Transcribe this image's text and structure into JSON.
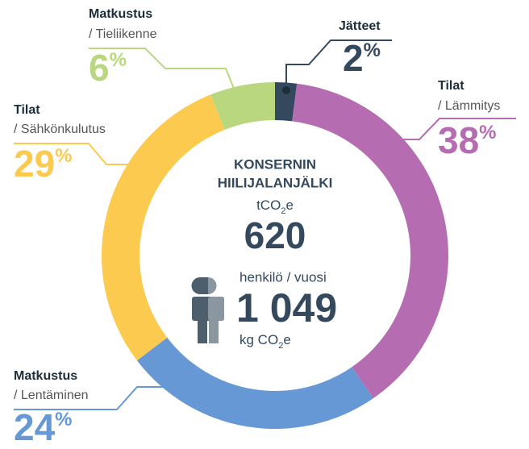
{
  "chart_data": {
    "type": "donut",
    "unit": "%",
    "segments": [
      {
        "title": "Jätteet",
        "subtitle": null,
        "value": 2,
        "color": "#34495e"
      },
      {
        "title": "Tilat",
        "subtitle": "/ Lämmitys",
        "value": 38,
        "color": "#b56cb0"
      },
      {
        "title": "Matkustus",
        "subtitle": "/ Lentäminen",
        "value": 24,
        "color": "#6598d4"
      },
      {
        "title": "Tilat",
        "subtitle": "/ Sähkönkulutus",
        "value": 29,
        "color": "#fdca50"
      },
      {
        "title": "Matkustus",
        "subtitle": "/ Tieliikenne",
        "value": 6,
        "color": "#b8d77f"
      }
    ],
    "center": {
      "title_line1": "KONSERNIN",
      "title_line2": "HIILIJALANJÄLKI",
      "unit1": {
        "pre": "tCO",
        "sub": "2",
        "post": "e"
      },
      "total": "620",
      "per_label": "henkilö / vuosi",
      "per_value": "1 049",
      "unit2": {
        "pre": "kg CO",
        "sub": "2",
        "post": "e"
      }
    }
  }
}
